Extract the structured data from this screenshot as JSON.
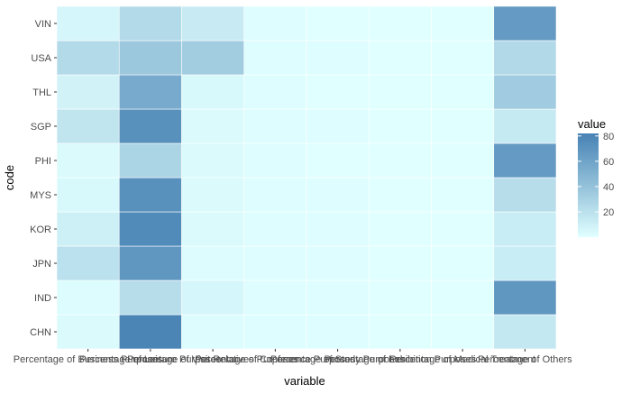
{
  "chart_data": {
    "type": "heatmap",
    "xlabel": "variable",
    "ylabel": "code",
    "x_categories": [
      "Percentage of Business Purposes",
      "Percentage of Leisure Purposes",
      "Percentage of Visit Relatives Purposes",
      "Percentage of Conference Purposes",
      "Percentage of Study Purposes",
      "Percentage of Exhibition Purposes",
      "Percentage of Medical Treatment",
      "Percentage of Others"
    ],
    "x_tick_labels": [
      "Percentage of Business Purposes",
      "Percentage of Leisure Purposes",
      "Percentage of Visit Relatives Purposes",
      "Percentage of Conference Purposes",
      "Percentage of Study Purposes",
      "Percentage of Exhibition Purposes",
      "Percentage of Medical Treatment",
      "Percentage of Others"
    ],
    "y_categories": [
      "CHN",
      "IND",
      "JPN",
      "KOR",
      "MYS",
      "PHI",
      "SGP",
      "THL",
      "USA",
      "VIN"
    ],
    "values": [
      [
        3,
        80,
        2,
        1,
        1,
        0,
        0,
        15
      ],
      [
        2,
        22,
        6,
        1,
        1,
        0,
        0,
        68
      ],
      [
        20,
        68,
        2,
        1,
        1,
        0,
        0,
        12
      ],
      [
        10,
        76,
        3,
        1,
        1,
        0,
        0,
        12
      ],
      [
        4,
        72,
        3,
        1,
        1,
        0,
        0,
        22
      ],
      [
        3,
        28,
        3,
        1,
        0,
        0,
        0,
        66
      ],
      [
        17,
        72,
        3,
        1,
        1,
        0,
        0,
        14
      ],
      [
        8,
        56,
        4,
        1,
        0,
        0,
        0,
        34
      ],
      [
        24,
        36,
        33,
        1,
        1,
        0,
        0,
        25
      ],
      [
        6,
        24,
        13,
        1,
        0,
        0,
        0,
        66
      ]
    ],
    "legend": {
      "title": "value",
      "ticks": [
        20,
        40,
        60,
        80
      ],
      "range": [
        0,
        82
      ],
      "position": "right"
    },
    "colors": {
      "low": "#e0ffff",
      "high": "#4682b4",
      "panel_background": "#ebebeb",
      "tile_border": "#ffffff"
    },
    "grid": true
  }
}
